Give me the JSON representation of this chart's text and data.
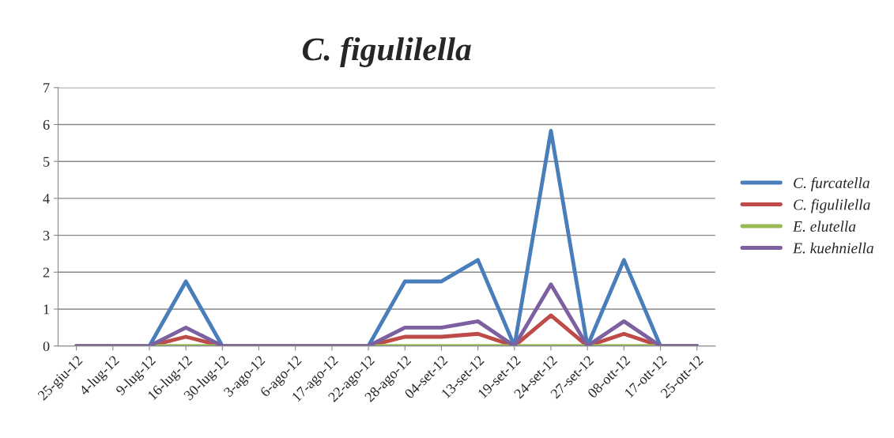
{
  "chart_data": {
    "type": "line",
    "title": "C. figulilella",
    "categories": [
      "25-giu-12",
      "4-lug-12",
      "9-lug-12",
      "16-lug-12",
      "30-lug-12",
      "3-ago-12",
      "6-ago-12",
      "17-ago-12",
      "22-ago-12",
      "28-ago-12",
      "04-set-12",
      "13-set-12",
      "19-set-12",
      "24-set-12",
      "27-set-12",
      "08-ott-12",
      "17-ott-12",
      "25-ott-12"
    ],
    "series": [
      {
        "name": "C. furcatella",
        "color": "#4a7ebb",
        "values": [
          0,
          0,
          0,
          1.75,
          0,
          0,
          0,
          0,
          0,
          1.75,
          1.75,
          2.33,
          0,
          5.83,
          0,
          2.33,
          0,
          0
        ]
      },
      {
        "name": "C. figulilella",
        "color": "#be4b48",
        "values": [
          0,
          0,
          0,
          0.25,
          0,
          0,
          0,
          0,
          0,
          0.25,
          0.25,
          0.33,
          0,
          0.83,
          0,
          0.33,
          0,
          0
        ]
      },
      {
        "name": "E. elutella",
        "color": "#98b954",
        "values": [
          0,
          0,
          0,
          0,
          0,
          0,
          0,
          0,
          0,
          0,
          0,
          0,
          0,
          0,
          0,
          0,
          0,
          0
        ]
      },
      {
        "name": "E. kuehniella",
        "color": "#7d60a0",
        "values": [
          0,
          0,
          0,
          0.5,
          0,
          0,
          0,
          0,
          0,
          0.5,
          0.5,
          0.67,
          0,
          1.67,
          0,
          0.67,
          0,
          0
        ]
      }
    ],
    "ylim": [
      0,
      7
    ],
    "yticks": [
      0,
      1,
      2,
      3,
      4,
      5,
      6,
      7
    ],
    "grid": "y",
    "legend": "right",
    "marker": "none",
    "line_style": "solid"
  }
}
